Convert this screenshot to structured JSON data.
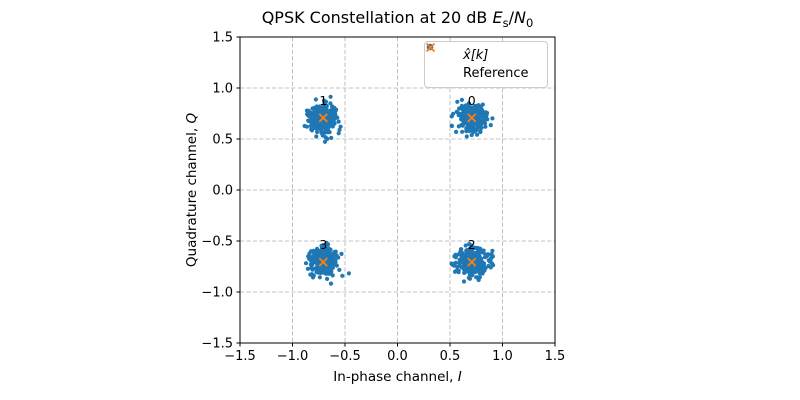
{
  "figure": {
    "background": "#ffffff"
  },
  "title_parts": {
    "prefix": "QPSK Constellation at 20 dB ",
    "es_var": "E",
    "es_sub": "s",
    "slash": "/",
    "n_var": "N",
    "n_sub": "0"
  },
  "xlabel_parts": {
    "prefix": "In-phase channel, ",
    "var": "I"
  },
  "ylabel_parts": {
    "prefix": "Quadrature channel, ",
    "var": "Q"
  },
  "legend": {
    "position": "upper right",
    "items": [
      {
        "marker": "dot",
        "color": "#1f77b4",
        "label": "x̂[k]"
      },
      {
        "marker": "x",
        "color": "#ff7f0e",
        "label": "Reference"
      }
    ]
  },
  "chart_data": {
    "type": "scatter",
    "title": "QPSK Constellation at 20 dB Es/N0",
    "xlabel": "In-phase channel, I",
    "ylabel": "Quadrature channel, Q",
    "xlim": [
      -1.5,
      1.5
    ],
    "ylim": [
      -1.5,
      1.5
    ],
    "xticks": [
      -1.5,
      -1.0,
      -0.5,
      0.0,
      0.5,
      1.0,
      1.5
    ],
    "yticks": [
      -1.5,
      -1.0,
      -0.5,
      0.0,
      0.5,
      1.0,
      1.5
    ],
    "xtick_labels": [
      "−1.5",
      "−1.0",
      "−0.5",
      "0.0",
      "0.5",
      "1.0",
      "1.5"
    ],
    "ytick_labels": [
      "−1.5",
      "−1.0",
      "−0.5",
      "0.0",
      "0.5",
      "1.0",
      "1.5"
    ],
    "grid": {
      "visible": true,
      "style": "dashed",
      "color": "#b0b0b0"
    },
    "legend_position": "upper right",
    "series": [
      {
        "name": "x̂[k]",
        "type": "scatter",
        "marker": "dot",
        "color": "#1f77b4",
        "clusters": [
          {
            "label": "0",
            "center": [
              0.7071,
              0.7071
            ],
            "n": 280,
            "sigma": 0.0707
          },
          {
            "label": "1",
            "center": [
              -0.7071,
              0.7071
            ],
            "n": 280,
            "sigma": 0.0707
          },
          {
            "label": "2",
            "center": [
              0.7071,
              -0.7071
            ],
            "n": 280,
            "sigma": 0.0707
          },
          {
            "label": "3",
            "center": [
              -0.7071,
              -0.7071
            ],
            "n": 280,
            "sigma": 0.0707
          }
        ]
      },
      {
        "name": "Reference",
        "type": "scatter",
        "marker": "x",
        "color": "#ff7f0e",
        "points": [
          [
            0.7071,
            0.7071
          ],
          [
            -0.7071,
            0.7071
          ],
          [
            0.7071,
            -0.7071
          ],
          [
            -0.7071,
            -0.7071
          ]
        ]
      }
    ]
  }
}
